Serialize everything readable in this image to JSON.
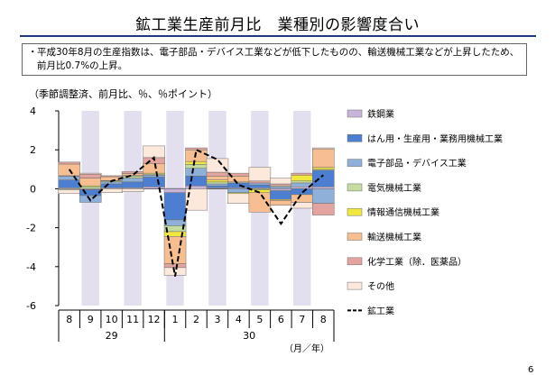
{
  "page": {
    "title": "鉱工業生産前月比　業種別の影響度合い",
    "note_bullet": "・",
    "note": "平成30年8月の生産指数は、電子部品・デバイス工業などが低下したものの、輸送機械工業などが上昇したため、前月比0.7%の上昇。",
    "unit_label": "（季節調整済、前月比、％、％ポイント）",
    "page_number": "6"
  },
  "chart_data": {
    "type": "bar",
    "stacked": true,
    "categories": [
      "8",
      "9",
      "10",
      "11",
      "12",
      "1",
      "2",
      "3",
      "4",
      "5",
      "6",
      "7",
      "8"
    ],
    "year_labels": [
      {
        "label": "29",
        "from": 0,
        "to": 4
      },
      {
        "label": "30",
        "from": 5,
        "to": 12
      }
    ],
    "xunit": "（月／年）",
    "ylim": [
      -6,
      4
    ],
    "yticks": [
      4,
      2,
      0,
      -2,
      -4,
      -6
    ],
    "shaded_categories": [
      1,
      3,
      5,
      7,
      9,
      11
    ],
    "series": [
      {
        "name": "鉄鋼業",
        "color": "#c9b3d9",
        "values": [
          0.05,
          -0.05,
          0.05,
          0.05,
          0.1,
          -0.2,
          0.15,
          0.05,
          0.05,
          0.05,
          -0.1,
          0.1,
          0.1
        ]
      },
      {
        "name": "はん用・生産用・業務用機械工業",
        "color": "#4d7fd0",
        "values": [
          0.4,
          -0.3,
          0.2,
          0.3,
          0.5,
          -1.4,
          0.5,
          0.1,
          0.25,
          0.15,
          -0.45,
          -0.3,
          0.85
        ]
      },
      {
        "name": "電子部品・デバイス工業",
        "color": "#8fb0d8",
        "values": [
          0.2,
          -0.35,
          0.1,
          0.2,
          0.1,
          -0.3,
          0.4,
          0.1,
          -0.2,
          0.1,
          0.1,
          0.2,
          -0.75
        ]
      },
      {
        "name": "電気機械工業",
        "color": "#c4dca0",
        "values": [
          -0.05,
          0.1,
          0.05,
          0.1,
          0.05,
          -0.3,
          0.2,
          0.1,
          0.05,
          -0.05,
          0.05,
          0.1,
          0.05
        ]
      },
      {
        "name": "情報通信機械工業",
        "color": "#f2e640",
        "values": [
          0.02,
          0.05,
          0.02,
          0.03,
          0.05,
          -0.25,
          0.15,
          0.1,
          -0.05,
          -0.15,
          -0.05,
          0.3,
          0.1
        ]
      },
      {
        "name": "輸送機械工業",
        "color": "#f7be92",
        "values": [
          0.6,
          0.4,
          0.2,
          0.1,
          0.5,
          -1.4,
          0.6,
          0.2,
          0.3,
          -1.0,
          -0.25,
          -0.4,
          0.95
        ]
      },
      {
        "name": "化学工業（除．医薬品）",
        "color": "#e3a39f",
        "values": [
          0.1,
          0.2,
          0.05,
          0.1,
          0.3,
          -0.2,
          0.1,
          0.2,
          0.15,
          0.1,
          0.1,
          0.1,
          -0.6
        ]
      },
      {
        "name": "その他",
        "color": "#fde8dc",
        "values": [
          -0.2,
          0.05,
          -0.2,
          -0.15,
          0.6,
          -0.4,
          -1.1,
          0.7,
          -0.5,
          0.7,
          0.3,
          -0.3,
          0.05
        ]
      }
    ],
    "line": {
      "name": "鉱工業",
      "color": "#000000",
      "values": [
        1.0,
        -0.6,
        0.4,
        0.7,
        1.6,
        -4.5,
        2.0,
        1.5,
        0.2,
        -0.2,
        -1.8,
        -0.2,
        0.7
      ]
    }
  }
}
